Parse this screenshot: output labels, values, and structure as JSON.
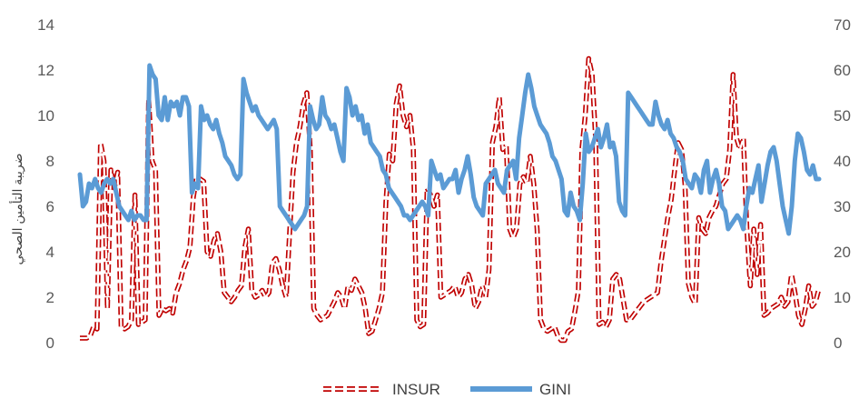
{
  "chart_data": {
    "type": "line",
    "title": "",
    "xlabel": "",
    "ylabel_left": "ضريبة التأمين الصحي",
    "ylabel_right": "",
    "y_left": {
      "min": 0,
      "max": 14,
      "step": 2,
      "ticks": [
        "0",
        "2",
        "4",
        "6",
        "8",
        "10",
        "12",
        "14"
      ]
    },
    "y_right": {
      "min": 0,
      "max": 70,
      "step": 10,
      "ticks": [
        "0",
        "10",
        "20",
        "30",
        "40",
        "50",
        "60",
        "70"
      ]
    },
    "grid": false,
    "legend_position": "bottom",
    "series": [
      {
        "name": "INSUR",
        "axis": "left",
        "color": "#c00000",
        "style": "dashed-double",
        "values": [
          0.2,
          0.2,
          0.2,
          0.3,
          0.7,
          0.6,
          8.8,
          8.0,
          1.5,
          7.6,
          6.8,
          7.5,
          0.7,
          0.6,
          0.7,
          1.0,
          6.5,
          0.8,
          0.9,
          1.0,
          10.7,
          8.0,
          7.6,
          1.2,
          1.5,
          1.4,
          1.5,
          1.3,
          2.2,
          2.6,
          3.2,
          3.6,
          4.2,
          6.4,
          7.3,
          7.2,
          7.1,
          4.0,
          3.8,
          4.5,
          4.8,
          4.0,
          2.2,
          2.0,
          1.8,
          2.0,
          2.3,
          2.5,
          4.2,
          5.0,
          2.3,
          2.0,
          2.1,
          2.3,
          2.0,
          2.2,
          3.5,
          3.7,
          3.2,
          2.5,
          2.0,
          4.8,
          7.5,
          8.8,
          9.5,
          10.5,
          11.0,
          8.5,
          1.5,
          1.2,
          1.0,
          1.1,
          1.2,
          1.5,
          1.8,
          2.2,
          2.0,
          1.5,
          2.5,
          2.3,
          2.8,
          2.5,
          2.2,
          1.5,
          0.4,
          0.5,
          1.0,
          1.5,
          2.2,
          6.2,
          8.3,
          8.0,
          10.5,
          11.3,
          10.0,
          9.5,
          10.0,
          8.5,
          1.0,
          0.7,
          0.8,
          6.8,
          6.5,
          6.0,
          6.5,
          2.0,
          2.1,
          2.2,
          2.3,
          2.5,
          2.0,
          2.2,
          2.8,
          3.0,
          2.5,
          1.5,
          1.8,
          2.5,
          2.0,
          3.2,
          8.8,
          9.5,
          10.8,
          8.5,
          8.7,
          5.0,
          4.6,
          5.0,
          7.0,
          7.3,
          7.0,
          8.2,
          7.0,
          5.0,
          1.0,
          0.6,
          0.5,
          0.6,
          0.7,
          0.3,
          0.1,
          0.1,
          0.5,
          0.6,
          1.4,
          2.3,
          8.5,
          10.0,
          12.5,
          11.8,
          9.0,
          0.8,
          0.9,
          0.7,
          1.0,
          2.8,
          3.0,
          2.8,
          1.9,
          1.0,
          1.0,
          1.2,
          1.4,
          1.6,
          1.8,
          1.9,
          2.0,
          2.1,
          2.2,
          3.5,
          4.5,
          5.5,
          6.3,
          7.6,
          8.8,
          8.5,
          7.0,
          2.6,
          2.0,
          1.7,
          5.5,
          5.0,
          4.8,
          5.5,
          5.8,
          6.0,
          6.5,
          7.0,
          7.2,
          8.5,
          11.8,
          9.0,
          8.5,
          9.0,
          5.0,
          2.5,
          5.0,
          3.0,
          5.2,
          1.2,
          1.3,
          1.5,
          1.6,
          1.7,
          2.0,
          1.6,
          1.8,
          3.0,
          2.2,
          1.2,
          0.8,
          1.5,
          2.5,
          1.6,
          1.8,
          2.4
        ]
      },
      {
        "name": "GINI",
        "axis": "right",
        "color": "#5b9bd5",
        "style": "solid",
        "values": [
          37,
          30,
          31,
          35,
          34,
          36,
          34,
          33,
          35,
          36,
          35,
          36,
          33,
          30,
          29,
          28,
          27,
          29,
          27,
          28,
          28,
          27,
          27,
          61,
          59,
          58,
          50,
          49,
          54,
          49,
          53,
          52,
          53,
          50,
          54,
          54,
          52,
          33,
          35,
          34,
          52,
          49,
          50,
          48,
          47,
          49,
          46,
          44,
          41,
          40,
          39,
          37,
          36,
          37,
          58,
          55,
          53,
          51,
          52,
          50,
          49,
          48,
          47,
          48,
          49,
          47,
          30,
          29,
          28,
          27,
          26,
          25,
          26,
          27,
          28,
          30,
          52,
          49,
          47,
          48,
          54,
          50,
          49,
          47,
          48,
          45,
          42,
          40,
          56,
          54,
          50,
          52,
          49,
          50,
          46,
          48,
          44,
          43,
          42,
          41,
          38,
          37,
          34,
          33,
          32,
          31,
          30,
          28,
          28,
          27,
          28,
          29,
          30,
          31,
          30,
          28,
          40,
          38,
          36,
          37,
          34,
          35,
          36,
          36,
          38,
          33,
          36,
          38,
          41,
          37,
          32,
          30,
          29,
          28,
          35,
          36,
          37,
          38,
          35,
          34,
          33,
          38,
          39,
          40,
          36,
          45,
          50,
          55,
          59,
          56,
          52,
          50,
          48,
          47,
          46,
          44,
          41,
          40,
          38,
          36,
          29,
          28,
          33,
          30,
          29,
          27,
          35,
          46,
          42,
          43,
          45,
          47,
          43,
          45,
          48,
          43,
          44,
          41,
          31,
          29,
          28,
          55,
          54,
          53,
          52,
          51,
          50,
          49,
          48,
          48,
          53,
          50,
          48,
          47,
          49,
          46,
          45,
          43,
          42,
          40,
          36,
          35,
          34,
          37,
          36,
          33,
          38,
          40,
          33,
          36,
          38,
          35,
          30,
          29,
          25,
          26,
          27,
          28,
          27,
          25,
          30,
          34,
          33,
          36,
          39,
          31,
          35,
          39,
          42,
          43,
          40,
          35,
          30,
          27,
          24,
          30,
          40,
          46,
          45,
          42,
          38,
          37,
          39,
          36,
          36
        ]
      }
    ]
  }
}
